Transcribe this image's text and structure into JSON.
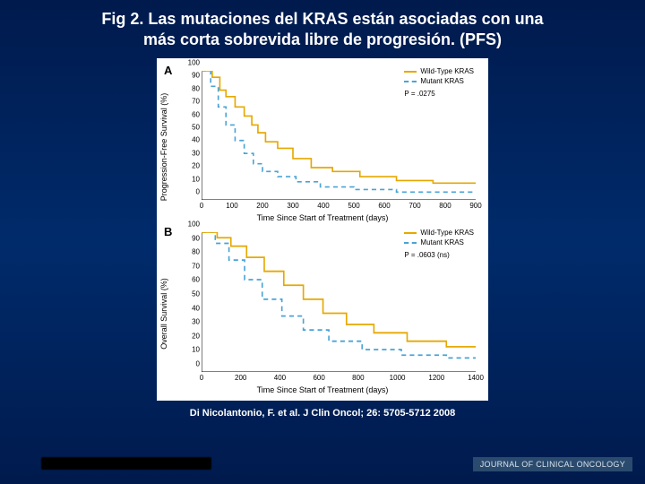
{
  "title_line1": "Fig 2. Las mutaciones del  KRAS  están asociadas con una",
  "title_line2": "más corta sobrevida libre de progresión. (PFS)",
  "citation": "Di Nicolantonio, F. et al. J Clin Oncol; 26: 5705-5712 2008",
  "journal_badge": "JOURNAL OF CLINICAL ONCOLOGY",
  "colors": {
    "slide_bg_top": "#001a4d",
    "slide_bg_mid": "#002b6b",
    "panel_bg": "#ffffff",
    "text": "#000000",
    "title_text": "#ffffff",
    "series_wt": "#e6a800",
    "series_mut": "#4aa3d6",
    "axis": "#000000"
  },
  "panels": [
    {
      "label": "A",
      "y_label": "Progression-Free Survival (%)",
      "x_label": "Time Since Start of Treatment (days)",
      "legend": {
        "wt": "Wild-Type KRAS",
        "mut": "Mutant KRAS",
        "p": "P = .0275"
      },
      "y": {
        "min": 0,
        "max": 100,
        "ticks": [
          0,
          10,
          20,
          30,
          40,
          50,
          60,
          70,
          80,
          90,
          100
        ]
      },
      "x": {
        "min": 0,
        "max": 900,
        "ticks": [
          0,
          100,
          200,
          300,
          400,
          500,
          600,
          700,
          800,
          900
        ]
      },
      "style": {
        "wt_dash": "none",
        "mut_dash": "5,4",
        "line_width": 1.6
      },
      "series": {
        "wt": [
          [
            0,
            100
          ],
          [
            35,
            95
          ],
          [
            60,
            85
          ],
          [
            80,
            80
          ],
          [
            110,
            72
          ],
          [
            140,
            65
          ],
          [
            165,
            58
          ],
          [
            185,
            52
          ],
          [
            210,
            45
          ],
          [
            250,
            40
          ],
          [
            300,
            32
          ],
          [
            360,
            25
          ],
          [
            430,
            22
          ],
          [
            520,
            18
          ],
          [
            640,
            15
          ],
          [
            760,
            13
          ],
          [
            860,
            13
          ],
          [
            900,
            13
          ]
        ],
        "mut": [
          [
            0,
            100
          ],
          [
            30,
            88
          ],
          [
            55,
            72
          ],
          [
            80,
            58
          ],
          [
            110,
            46
          ],
          [
            140,
            36
          ],
          [
            170,
            28
          ],
          [
            200,
            22
          ],
          [
            250,
            18
          ],
          [
            310,
            14
          ],
          [
            390,
            10
          ],
          [
            500,
            8
          ],
          [
            640,
            6
          ],
          [
            900,
            6
          ]
        ]
      }
    },
    {
      "label": "B",
      "y_label": "Overall Survival (%)",
      "x_label": "Time Since Start of Treatment (days)",
      "legend": {
        "wt": "Wild-Type KRAS",
        "mut": "Mutant KRAS",
        "p": "P = .0603 (ns)"
      },
      "y": {
        "min": 0,
        "max": 100,
        "ticks": [
          0,
          10,
          20,
          30,
          40,
          50,
          60,
          70,
          80,
          90,
          100
        ]
      },
      "x": {
        "min": 0,
        "max": 1400,
        "ticks": [
          0,
          200,
          400,
          600,
          800,
          1000,
          1200,
          1400
        ]
      },
      "style": {
        "wt_dash": "none",
        "mut_dash": "5,4",
        "line_width": 1.6
      },
      "series": {
        "wt": [
          [
            0,
            100
          ],
          [
            80,
            96
          ],
          [
            150,
            90
          ],
          [
            230,
            82
          ],
          [
            320,
            72
          ],
          [
            420,
            62
          ],
          [
            520,
            52
          ],
          [
            620,
            42
          ],
          [
            740,
            34
          ],
          [
            880,
            28
          ],
          [
            1050,
            22
          ],
          [
            1250,
            18
          ],
          [
            1400,
            18
          ]
        ],
        "mut": [
          [
            0,
            100
          ],
          [
            70,
            92
          ],
          [
            140,
            80
          ],
          [
            220,
            66
          ],
          [
            310,
            52
          ],
          [
            410,
            40
          ],
          [
            520,
            30
          ],
          [
            650,
            22
          ],
          [
            820,
            16
          ],
          [
            1020,
            12
          ],
          [
            1250,
            10
          ],
          [
            1400,
            10
          ]
        ]
      }
    }
  ]
}
